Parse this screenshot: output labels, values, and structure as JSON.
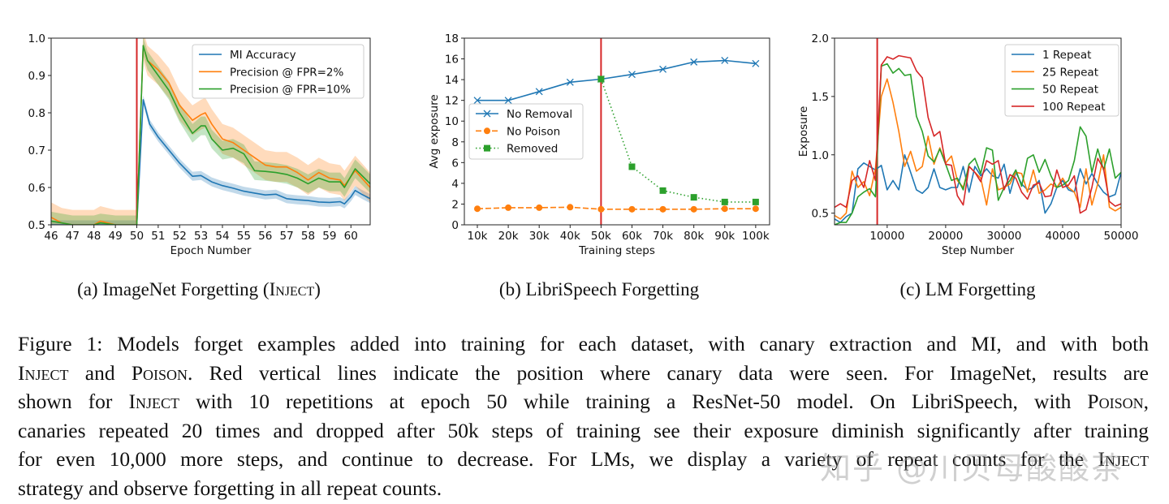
{
  "subcaptions": {
    "a": {
      "prefix": "(a) ImageNet Forgetting (",
      "sc": "Inject",
      "suffix": ")"
    },
    "b": "(b) LibriSpeech Forgetting",
    "c": "(c) LM Forgetting"
  },
  "caption": {
    "lines": [
      [
        {
          "t": "Figure 1: Models forget examples added into training for each dataset, with canary extraction and MI, and with both"
        }
      ],
      [
        {
          "t": "Inject",
          "sc": true
        },
        {
          "t": " and "
        },
        {
          "t": "Poison",
          "sc": true
        },
        {
          "t": ". Red vertical lines indicate the position where canary data were seen. For ImageNet, results are"
        }
      ],
      [
        {
          "t": "shown for "
        },
        {
          "t": "Inject",
          "sc": true
        },
        {
          "t": " with 10 repetitions at epoch 50 while training a ResNet-50 model. On LibriSpeech, with "
        },
        {
          "t": "Poison",
          "sc": true
        },
        {
          "t": ","
        }
      ],
      [
        {
          "t": "canaries repeated 20 times and dropped after 50k steps of training see their exposure diminish significantly after training"
        }
      ],
      [
        {
          "t": "for even 10,000 more steps, and continue to decrease. For LMs, we display a variety of repeat counts for the "
        },
        {
          "t": "Inject",
          "sc": true
        }
      ],
      [
        {
          "t": "strategy and observe forgetting in all repeat counts."
        }
      ]
    ]
  },
  "watermark": "知乎 @川贝母酸酸茶",
  "chart_data": [
    {
      "type": "line",
      "xlabel": "Epoch Number",
      "ylabel": "",
      "xlim": [
        46,
        60.9
      ],
      "ylim": [
        0.5,
        1.0
      ],
      "xticks": [
        46,
        47,
        48,
        49,
        50,
        51,
        52,
        53,
        54,
        55,
        56,
        57,
        58,
        59,
        60
      ],
      "yticks": [
        "0.5",
        "0.6",
        "0.7",
        "0.8",
        "0.9",
        "1.0"
      ],
      "vline": 50,
      "vline_color": "#d62728",
      "legend": "top-right",
      "grid": false,
      "series": [
        {
          "name": "MI Accuracy",
          "color": "#1f77b4",
          "band": 0.012,
          "x": [
            46,
            46.5,
            47,
            48,
            49,
            49.7,
            50,
            50.3,
            50.6,
            51,
            51.5,
            52,
            52.6,
            53,
            53.5,
            54,
            54.5,
            55,
            55.5,
            56,
            56.5,
            57,
            57.5,
            58,
            58.5,
            59,
            59.5,
            59.7,
            60,
            60.2,
            60.5,
            60.9
          ],
          "y": [
            0.5,
            0.5,
            0.5,
            0.5,
            0.5,
            0.5,
            0.5,
            0.835,
            0.77,
            0.735,
            0.7,
            0.665,
            0.63,
            0.632,
            0.615,
            0.605,
            0.598,
            0.59,
            0.585,
            0.58,
            0.582,
            0.57,
            0.567,
            0.565,
            0.561,
            0.56,
            0.562,
            0.556,
            0.575,
            0.592,
            0.582,
            0.57
          ]
        },
        {
          "name": "Precision @ FPR=2%",
          "color": "#ff7f0e",
          "band": 0.04,
          "x": [
            46,
            46.5,
            47,
            48,
            48.3,
            49,
            49.7,
            50,
            50.3,
            50.5,
            51,
            51.5,
            52,
            52.6,
            53,
            53.2,
            53.5,
            54,
            54.5,
            55,
            55.5,
            56,
            56.5,
            57,
            57.5,
            58,
            58.5,
            59,
            59.5,
            59.7,
            60.2,
            60.9
          ],
          "y": [
            0.52,
            0.505,
            0.5,
            0.5,
            0.51,
            0.5,
            0.5,
            0.5,
            0.98,
            0.94,
            0.915,
            0.88,
            0.82,
            0.78,
            0.795,
            0.8,
            0.77,
            0.73,
            0.72,
            0.7,
            0.68,
            0.66,
            0.655,
            0.655,
            0.64,
            0.62,
            0.64,
            0.625,
            0.62,
            0.605,
            0.645,
            0.6
          ]
        },
        {
          "name": "Precision @ FPR=10%",
          "color": "#2ca02c",
          "band": 0.025,
          "x": [
            46,
            46.5,
            47,
            48,
            48.3,
            49,
            49.7,
            50,
            50.3,
            50.5,
            51,
            51.5,
            52,
            52.6,
            53,
            53.2,
            53.5,
            54,
            54.5,
            55,
            55.5,
            56,
            56.5,
            57,
            57.5,
            58,
            58.5,
            59,
            59.5,
            59.7,
            60.2,
            60.9
          ],
          "y": [
            0.51,
            0.505,
            0.5,
            0.5,
            0.505,
            0.5,
            0.5,
            0.5,
            0.98,
            0.94,
            0.9,
            0.86,
            0.8,
            0.745,
            0.765,
            0.765,
            0.73,
            0.7,
            0.705,
            0.69,
            0.645,
            0.643,
            0.64,
            0.635,
            0.625,
            0.61,
            0.625,
            0.615,
            0.615,
            0.6,
            0.65,
            0.61
          ]
        }
      ]
    },
    {
      "type": "line",
      "xlabel": "Training steps",
      "ylabel": "Avg exposure",
      "categories": [
        "10k",
        "20k",
        "30k",
        "40k",
        "50k",
        "60k",
        "70k",
        "80k",
        "90k",
        "100k"
      ],
      "ylim": [
        0,
        18
      ],
      "yticks": [
        "0",
        "2",
        "4",
        "6",
        "8",
        "10",
        "12",
        "14",
        "16",
        "18"
      ],
      "vline": "50k",
      "vline_color": "#d62728",
      "legend": "center-left",
      "grid": false,
      "series": [
        {
          "name": "No Removal",
          "color": "#1f77b4",
          "marker": "x",
          "style": "solid",
          "values": [
            12.0,
            12.0,
            12.85,
            13.75,
            14.05,
            14.5,
            15.0,
            15.7,
            15.85,
            15.55
          ]
        },
        {
          "name": "No Poison",
          "color": "#ff7f0e",
          "marker": "circle",
          "style": "dashed",
          "values": [
            1.55,
            1.65,
            1.65,
            1.7,
            1.5,
            1.5,
            1.5,
            1.5,
            1.55,
            1.55
          ]
        },
        {
          "name": "Removed",
          "color": "#2ca02c",
          "marker": "square",
          "style": "dotted",
          "values": [
            null,
            null,
            null,
            null,
            14.05,
            5.6,
            3.3,
            2.65,
            2.2,
            2.2
          ]
        }
      ]
    },
    {
      "type": "line",
      "xlabel": "Step Number",
      "ylabel": "Exposure",
      "xlim": [
        1000,
        50000
      ],
      "ylim": [
        0.4,
        2.0
      ],
      "xticks": [
        10000,
        20000,
        30000,
        40000,
        50000
      ],
      "yticks": [
        "0.5",
        "1.0",
        "1.5",
        "2.0"
      ],
      "vline": 8300,
      "vline_color": "#d62728",
      "legend": "top-right",
      "grid": false,
      "x": [
        1000,
        2000,
        3000,
        4000,
        5000,
        6000,
        7000,
        8000,
        9000,
        10000,
        11000,
        12000,
        13000,
        14000,
        15000,
        16000,
        17000,
        18000,
        19000,
        20000,
        21000,
        22000,
        23000,
        24000,
        25000,
        26000,
        27000,
        28000,
        29000,
        30000,
        31000,
        32000,
        33000,
        34000,
        35000,
        36000,
        37000,
        38000,
        39000,
        40000,
        41000,
        42000,
        43000,
        44000,
        45000,
        46000,
        47000,
        48000,
        49000,
        50000
      ],
      "series": [
        {
          "name": "1 Repeat",
          "color": "#1f77b4",
          "values": [
            0.45,
            0.42,
            0.47,
            0.5,
            0.88,
            0.93,
            0.9,
            0.87,
            0.91,
            0.7,
            0.78,
            0.7,
            1.0,
            0.85,
            0.7,
            0.67,
            0.72,
            0.88,
            0.72,
            0.7,
            0.72,
            0.72,
            0.9,
            0.68,
            0.9,
            0.82,
            0.88,
            0.82,
            0.8,
            0.92,
            0.67,
            0.85,
            0.75,
            0.7,
            0.72,
            0.78,
            0.5,
            0.58,
            0.72,
            0.78,
            0.7,
            0.68,
            0.88,
            0.75,
            0.84,
            0.75,
            0.68,
            0.64,
            0.66,
            0.85
          ]
        },
        {
          "name": "25 Repeat",
          "color": "#ff7f0e",
          "values": [
            0.48,
            0.45,
            0.5,
            0.86,
            0.72,
            0.77,
            0.65,
            0.88,
            1.5,
            1.65,
            1.45,
            1.2,
            0.9,
            1.03,
            0.86,
            0.9,
            1.16,
            0.92,
            1.06,
            0.93,
            0.99,
            0.78,
            0.72,
            0.9,
            0.85,
            0.8,
            0.57,
            0.88,
            0.7,
            0.72,
            0.75,
            0.85,
            0.84,
            0.68,
            0.87,
            0.67,
            0.7,
            0.75,
            0.72,
            0.8,
            0.72,
            0.68,
            0.55,
            0.88,
            0.57,
            0.75,
            1.0,
            0.55,
            0.52,
            0.55
          ]
        },
        {
          "name": "50 Repeat",
          "color": "#2ca02c",
          "values": [
            0.4,
            0.42,
            0.42,
            0.5,
            0.64,
            0.68,
            0.71,
            0.64,
            1.76,
            1.78,
            1.7,
            1.74,
            1.68,
            1.69,
            1.33,
            1.2,
            0.99,
            0.94,
            1.05,
            0.92,
            0.78,
            0.8,
            0.7,
            0.92,
            0.97,
            0.84,
            1.06,
            1.04,
            0.61,
            0.72,
            0.78,
            0.87,
            0.73,
            0.97,
            1.0,
            0.85,
            0.96,
            0.82,
            0.72,
            0.74,
            0.78,
            0.95,
            1.24,
            1.16,
            0.85,
            1.05,
            0.87,
            1.05,
            0.8,
            0.85
          ]
        },
        {
          "name": "100 Repeat",
          "color": "#d62728",
          "values": [
            0.55,
            0.58,
            0.55,
            0.78,
            0.82,
            0.72,
            0.95,
            0.78,
            1.77,
            1.84,
            1.82,
            1.85,
            1.84,
            1.83,
            1.72,
            1.66,
            1.32,
            1.16,
            1.2,
            0.92,
            0.91,
            0.65,
            0.57,
            0.9,
            0.85,
            0.77,
            0.95,
            0.92,
            0.95,
            0.7,
            0.83,
            0.8,
            0.68,
            0.62,
            0.74,
            0.76,
            0.64,
            0.65,
            0.87,
            0.72,
            0.74,
            0.82,
            0.5,
            0.53,
            0.72,
            0.97,
            0.88,
            0.6,
            0.56,
            0.58
          ]
        }
      ]
    }
  ]
}
